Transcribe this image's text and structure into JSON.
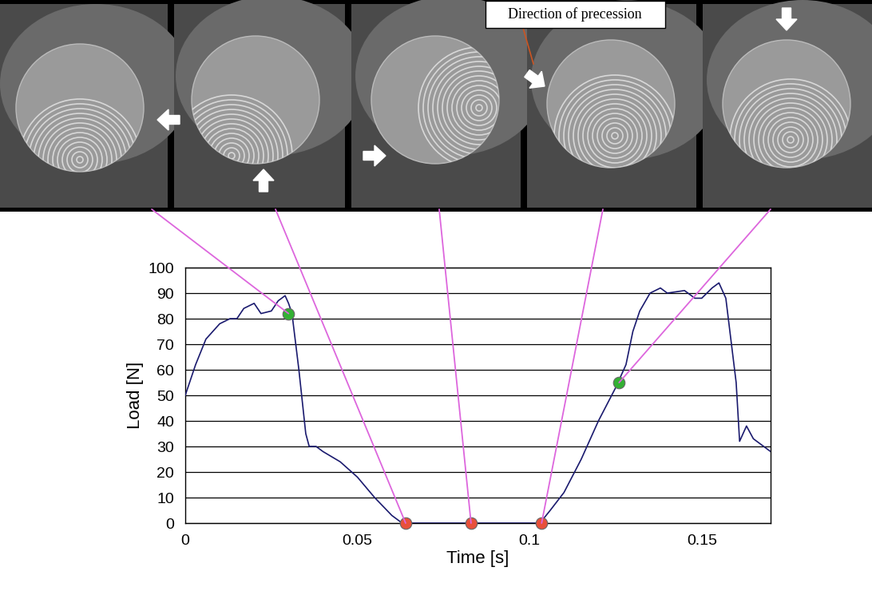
{
  "chart_data": {
    "type": "line",
    "x_label": "Time [s]",
    "y_label": "Load [N]",
    "annotations": [
      "Direction of precession"
    ],
    "xlim": [
      0,
      0.17
    ],
    "xticks": [
      0,
      0.05,
      0.1,
      0.15
    ],
    "ylim": [
      0,
      100
    ],
    "yticks": [
      0,
      10,
      20,
      30,
      40,
      50,
      60,
      70,
      80,
      90,
      100
    ],
    "grid": true,
    "series": [
      {
        "type": "line",
        "color": "#1a1a6e",
        "line_style": "solid",
        "x": [
          0,
          0.003,
          0.006,
          0.01,
          0.013,
          0.015,
          0.017,
          0.02,
          0.022,
          0.025,
          0.027,
          0.029,
          0.03,
          0.031,
          0.033,
          0.035,
          0.036,
          0.038,
          0.04,
          0.045,
          0.05,
          0.055,
          0.06,
          0.063,
          0.1,
          0.103,
          0.106,
          0.11,
          0.115,
          0.12,
          0.125,
          0.128,
          0.13,
          0.132,
          0.135,
          0.138,
          0.14,
          0.145,
          0.148,
          0.15,
          0.153,
          0.155,
          0.157,
          0.16,
          0.161,
          0.163,
          0.165,
          0.168,
          0.17
        ],
        "values": [
          50,
          62,
          72,
          78,
          80,
          80,
          84,
          86,
          82,
          83,
          87,
          89,
          86,
          82,
          60,
          35,
          30,
          30,
          28,
          24,
          18,
          10,
          3,
          0,
          0,
          0,
          5,
          12,
          25,
          40,
          53,
          62,
          75,
          83,
          90,
          92,
          90,
          91,
          88,
          88,
          92,
          94,
          88,
          55,
          32,
          38,
          33,
          30,
          28
        ]
      },
      {
        "type": "scatter",
        "color": "#33b033",
        "marker": "o",
        "x": [
          0.03,
          0.126
        ],
        "values": [
          82,
          55
        ]
      },
      {
        "type": "scatter",
        "color": "#e8503a",
        "marker": "o",
        "x": [
          0.064,
          0.083,
          0.1035
        ],
        "values": [
          0,
          0,
          0
        ]
      }
    ]
  }
}
